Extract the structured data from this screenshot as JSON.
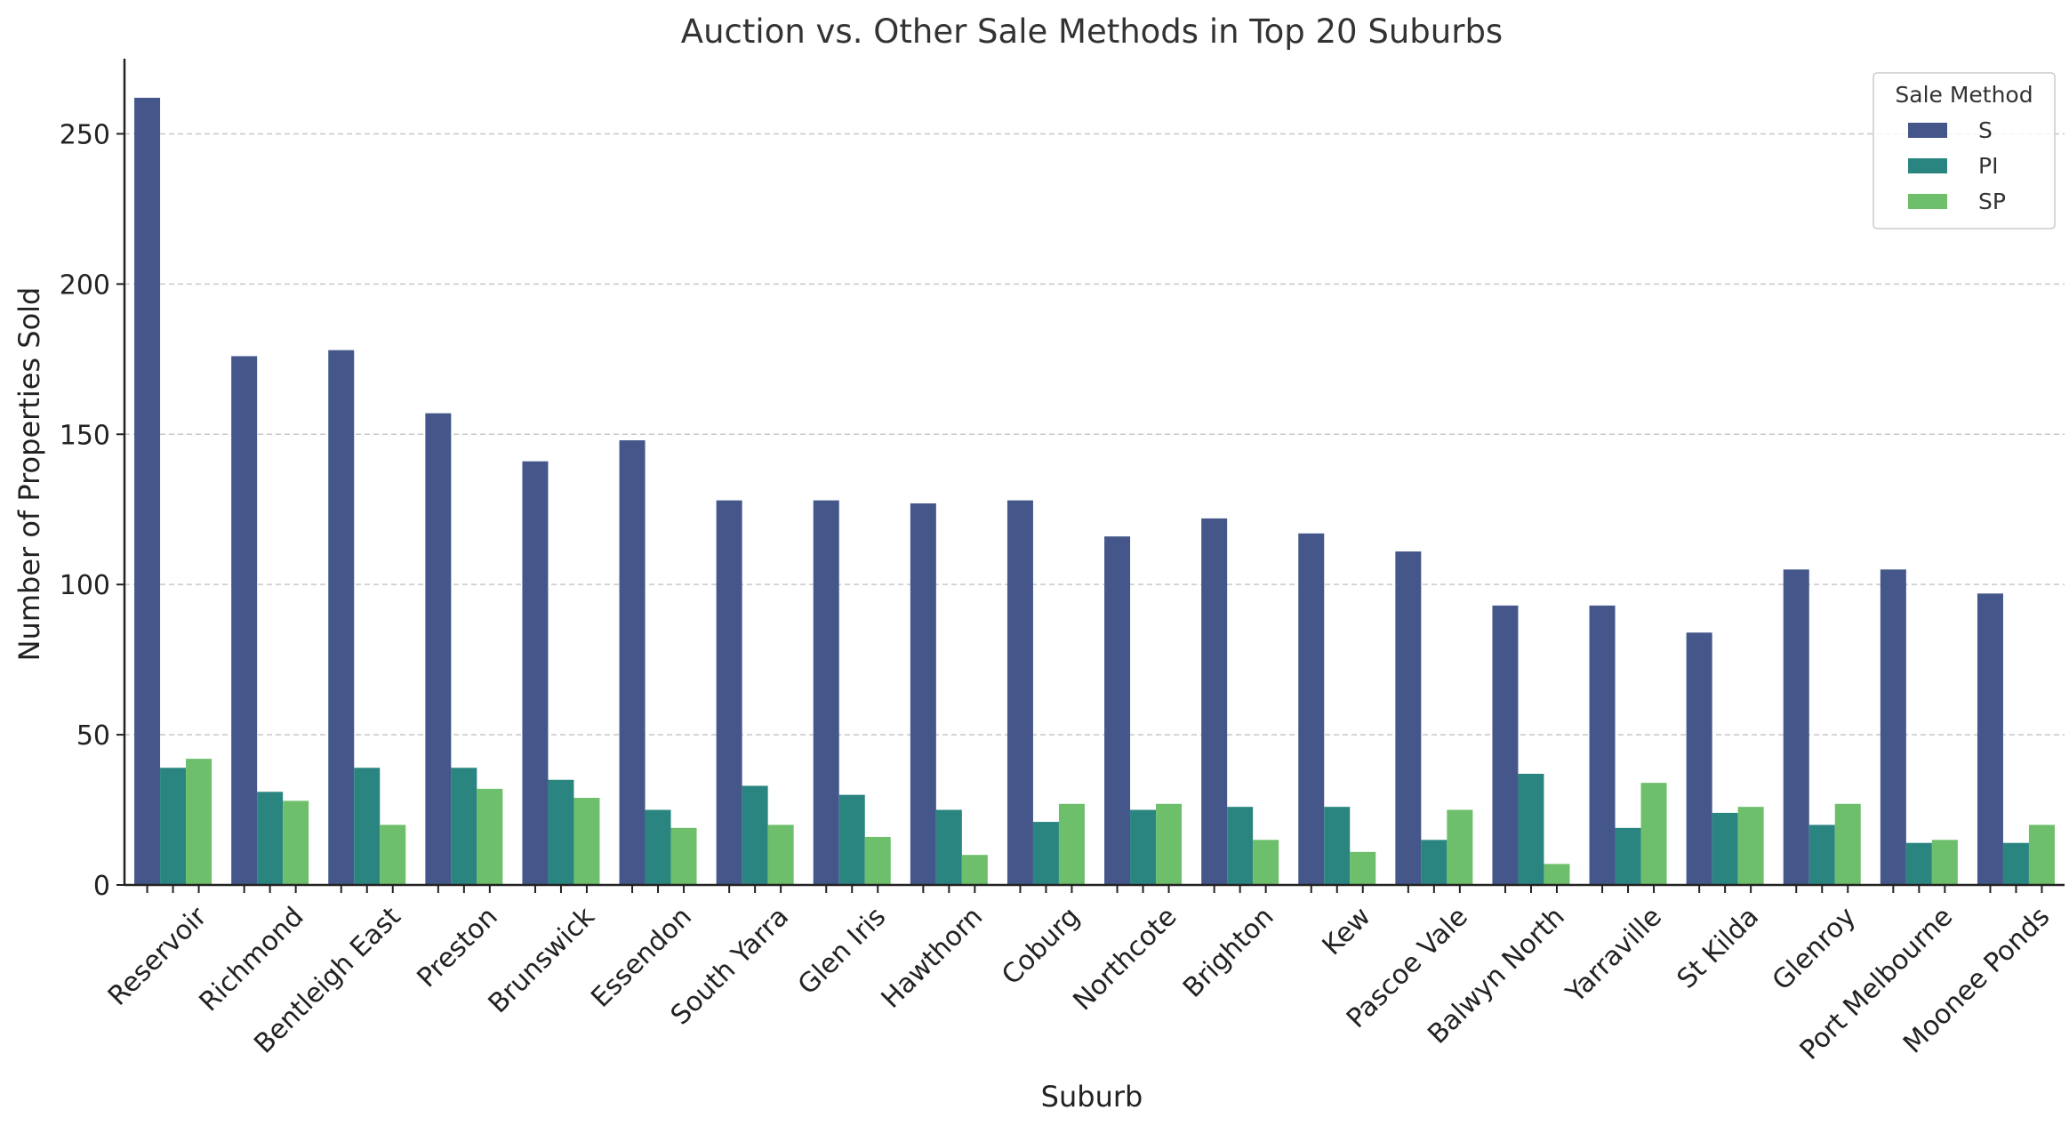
{
  "chart_data": {
    "type": "bar",
    "title": "Auction vs. Other Sale Methods in Top 20 Suburbs",
    "xlabel": "Suburb",
    "ylabel": "Number of Properties Sold",
    "ylim": [
      0,
      275
    ],
    "yticks": [
      0,
      50,
      100,
      150,
      200,
      250
    ],
    "grid": "y",
    "legend": {
      "title": "Sale Method",
      "placement": "top-right"
    },
    "categories": [
      "Reservoir",
      "Richmond",
      "Bentleigh East",
      "Preston",
      "Brunswick",
      "Essendon",
      "South Yarra",
      "Glen Iris",
      "Hawthorn",
      "Coburg",
      "Northcote",
      "Brighton",
      "Kew",
      "Pascoe Vale",
      "Balwyn North",
      "Yarraville",
      "St Kilda",
      "Glenroy",
      "Port Melbourne",
      "Moonee Ponds"
    ],
    "series": [
      {
        "name": "S",
        "color": "#45578a",
        "values": [
          262,
          176,
          178,
          157,
          141,
          148,
          128,
          128,
          127,
          128,
          116,
          122,
          117,
          111,
          93,
          93,
          84,
          105,
          105,
          97
        ]
      },
      {
        "name": "PI",
        "color": "#2a8580",
        "values": [
          39,
          31,
          39,
          39,
          35,
          25,
          33,
          30,
          25,
          21,
          25,
          26,
          26,
          15,
          37,
          19,
          24,
          20,
          14,
          14
        ]
      },
      {
        "name": "SP",
        "color": "#6dbf6b",
        "values": [
          42,
          28,
          20,
          32,
          29,
          19,
          20,
          16,
          10,
          27,
          27,
          15,
          11,
          25,
          7,
          34,
          26,
          27,
          15,
          20
        ]
      }
    ]
  }
}
